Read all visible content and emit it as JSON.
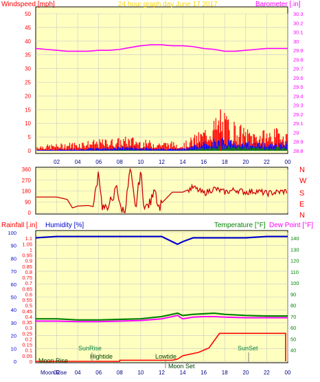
{
  "colors": {
    "panel_bg": "#ffffc0",
    "grid": "#c8c8c8",
    "wind": "#ff0000",
    "wind_avg": "#0000ff",
    "wind_low": "#008000",
    "barometer": "#ff00ff",
    "direction": "#cc0000",
    "rain": "#ff0000",
    "humidity": "#0000cc",
    "temperature": "#008000",
    "dewpoint": "#ff00ff",
    "title": "#ffd700",
    "tick_left": "#ff0000",
    "tick_right": "#ff00ff",
    "temp_tick": "#008000",
    "dark": "#004000",
    "annot": "#008040"
  },
  "header": {
    "left": "Windspeed [mph]",
    "title": "24 hour graph day   June 17 2017",
    "right": "Barometer [.in]"
  },
  "bottom_header": {
    "rainfall": "Rainfall [.in]",
    "humidity": "Humidity [%]",
    "temperature": "Temperature [°F]",
    "dewpoint": "Dew Point [°F]"
  },
  "compass": [
    "N",
    "W",
    "S",
    "E",
    "N"
  ],
  "annotations": {
    "sunrise": "SunRise",
    "hightide": "Hightide",
    "lowtide": "Lowtide",
    "moonrise": "Moon Rise",
    "moonset": "Moon Set",
    "sunset": "SunSet",
    "moonrise_axis": "Moon Rise"
  },
  "chart_data": [
    {
      "type": "line",
      "name": "wind-barometer",
      "xlim": [
        0,
        24
      ],
      "x_ticks": [
        "02",
        "04",
        "06",
        "08",
        "10",
        "12",
        "14",
        "16",
        "18",
        "20",
        "22",
        "00"
      ],
      "ylim_left": [
        0,
        50
      ],
      "yticks_left": [
        0,
        5,
        10,
        15,
        20,
        25,
        30,
        35,
        40,
        45,
        50
      ],
      "ylim_right": [
        28.8,
        30.3
      ],
      "yticks_right": [
        28.8,
        28.9,
        29,
        29.1,
        29.2,
        29.3,
        29.4,
        29.5,
        29.6,
        29.7,
        29.8,
        29.9,
        30,
        30.1,
        30.2,
        30.3
      ],
      "barometer": {
        "x": [
          0,
          1,
          2,
          3,
          4,
          5,
          6,
          7,
          8,
          9,
          10,
          11,
          12,
          13,
          14,
          15,
          16,
          17,
          18,
          19,
          20,
          21,
          22,
          23,
          24
        ],
        "values": [
          29.92,
          29.91,
          29.9,
          29.89,
          29.89,
          29.89,
          29.9,
          29.9,
          29.91,
          29.93,
          29.95,
          29.96,
          29.96,
          29.95,
          29.95,
          29.94,
          29.92,
          29.91,
          29.89,
          29.89,
          29.9,
          29.91,
          29.92,
          29.92,
          29.92
        ]
      },
      "wind_envelope": {
        "x": [
          0,
          2,
          4,
          6,
          8,
          9,
          10,
          12,
          13,
          14,
          15,
          16,
          17,
          18,
          19,
          20,
          21,
          22,
          23,
          24
        ],
        "gust": [
          1.5,
          1.8,
          2.5,
          3,
          3.5,
          4,
          3,
          2.5,
          2.5,
          2,
          4,
          6,
          9,
          10,
          8,
          6,
          5.5,
          5.5,
          6,
          6
        ],
        "avg": [
          0.3,
          0.4,
          0.6,
          0.9,
          1.2,
          1.4,
          1,
          0.8,
          0.7,
          0.8,
          1.8,
          2.8,
          3.5,
          3.8,
          3.2,
          2.8,
          2.6,
          2.5,
          2.6,
          2.8
        ],
        "low": [
          0,
          0,
          0,
          0.1,
          0.2,
          0.3,
          0.2,
          0.1,
          0,
          0.1,
          0.5,
          1,
          1.5,
          1.8,
          1.4,
          1.2,
          1,
          1,
          1.1,
          1.2
        ]
      },
      "wind_peak": {
        "x": 17.6,
        "value": 15
      }
    },
    {
      "type": "line",
      "name": "wind-direction",
      "xlim": [
        0,
        24
      ],
      "ylim": [
        0,
        360
      ],
      "yticks": [
        0,
        90,
        180,
        270,
        360
      ],
      "series": {
        "x": [
          0,
          2,
          3,
          3.5,
          4,
          5,
          5.5,
          6,
          6.3,
          6.8,
          7,
          7.3,
          7.7,
          8,
          8.5,
          9,
          9.5,
          10,
          10.2,
          10.5,
          11,
          11.3,
          11.7,
          12,
          13,
          14,
          15,
          16,
          17,
          18,
          19,
          20,
          21,
          22,
          23,
          24
        ],
        "values": [
          130,
          130,
          110,
          40,
          55,
          60,
          50,
          360,
          60,
          10,
          120,
          60,
          260,
          50,
          10,
          360,
          20,
          360,
          120,
          40,
          90,
          240,
          40,
          80,
          170,
          170,
          210,
          160,
          200,
          170,
          190,
          170,
          180,
          160,
          170,
          180
        ]
      }
    },
    {
      "type": "line",
      "name": "rain-humidity-temperature",
      "xlim": [
        0,
        24
      ],
      "ylim_rain": [
        0,
        1.15
      ],
      "yticks_rain": [
        0,
        0.05,
        0.1,
        0.15,
        0.2,
        0.25,
        0.3,
        0.35,
        0.4,
        0.45,
        0.5,
        0.55,
        0.6,
        0.65,
        0.7,
        0.75,
        0.8,
        0.85,
        0.9,
        0.95,
        1,
        1.05,
        1.1
      ],
      "ylim_humidity": [
        0,
        100
      ],
      "yticks_humidity": [
        0,
        10,
        20,
        30,
        40,
        50,
        60,
        70,
        80,
        90,
        100
      ],
      "ylim_temp": [
        30,
        145
      ],
      "yticks_temp": [
        40,
        50,
        60,
        70,
        80,
        90,
        100,
        110,
        120,
        130,
        140
      ],
      "rainfall": {
        "x": [
          0,
          8,
          8,
          13,
          13.5,
          14,
          15.5,
          16.5,
          17.5,
          18,
          23.8,
          23.8
        ],
        "values": [
          0,
          0,
          0.01,
          0.01,
          0.02,
          0.05,
          0.08,
          0.12,
          0.25,
          0.25,
          0.25,
          0
        ]
      },
      "humidity": {
        "x": [
          0,
          2,
          4,
          6,
          8,
          10,
          12,
          13,
          13.5,
          14,
          15,
          16,
          18,
          20,
          22,
          24
        ],
        "values": [
          96,
          97,
          97,
          97,
          97,
          97,
          97,
          93,
          91,
          93,
          96,
          96,
          96,
          96,
          97,
          97
        ]
      },
      "temperature": {
        "x": [
          0,
          2,
          4,
          6,
          8,
          10,
          12,
          13,
          13.5,
          14,
          15,
          16,
          17,
          18,
          20,
          22,
          24
        ],
        "values": [
          68,
          68,
          67,
          67,
          67.5,
          68,
          70,
          72,
          73,
          71,
          72,
          72.5,
          73,
          72,
          71,
          70.5,
          70.5
        ]
      },
      "dewpoint": {
        "x": [
          0,
          2,
          4,
          6,
          8,
          10,
          12,
          13,
          13.5,
          14,
          15,
          16,
          17,
          18,
          20,
          22,
          24
        ],
        "values": [
          66,
          66,
          65.5,
          65.5,
          66,
          66.5,
          68,
          70,
          71,
          68,
          69.5,
          70,
          70,
          69.5,
          69,
          69,
          69
        ]
      },
      "events": {
        "sunrise": 5.6,
        "hightide": 6.6,
        "lowtide": 13.4,
        "moonrise": 2.5,
        "moonset": 14.3,
        "sunset": 20.5
      }
    }
  ]
}
